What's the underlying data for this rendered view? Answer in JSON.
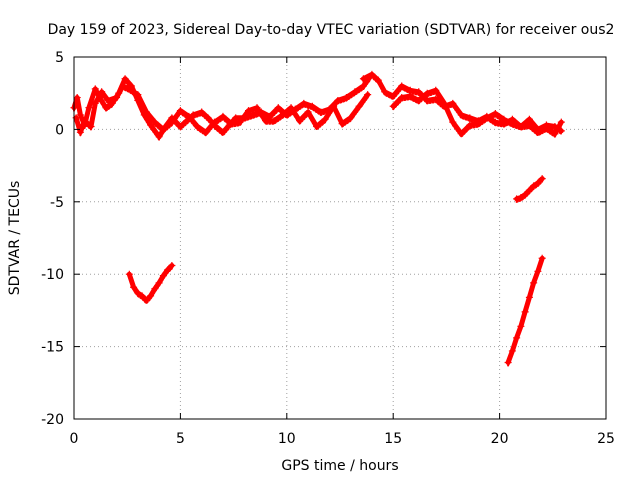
{
  "chart_data": {
    "type": "scatter",
    "title": "Day 159 of 2023, Sidereal Day-to-day VTEC variation (SDTVAR) for receiver ous2",
    "xlabel": "GPS time / hours",
    "ylabel": "SDTVAR / TECUs",
    "xlim": [
      0,
      25
    ],
    "ylim": [
      -20,
      5
    ],
    "xticks": [
      0,
      5,
      10,
      15,
      20,
      25
    ],
    "yticks": [
      5,
      0,
      -5,
      -10,
      -15,
      -20
    ],
    "grid": true,
    "legend": "none",
    "marker": "+",
    "colors": {
      "series": "#ff0000",
      "axis": "#000000",
      "grid": "#a0a0a0"
    },
    "series": [
      {
        "name": "main track A",
        "x": [
          0,
          0.15,
          0.3,
          0.5,
          0.7,
          1.0,
          1.2,
          1.5,
          1.8,
          2.1,
          2.4,
          2.7,
          3.0,
          3.3,
          3.6,
          4.0,
          4.3,
          4.6,
          5.0,
          5.3,
          5.6,
          6.0,
          6.3,
          6.6,
          7.0,
          7.3,
          7.6,
          8.0,
          8.4,
          8.8,
          9.2,
          9.6,
          10.0,
          10.4,
          10.8,
          11.2,
          11.6,
          12.0,
          12.4,
          12.8,
          13.2,
          13.6,
          13.9
        ],
        "y": [
          1.5,
          2.2,
          1.0,
          0.3,
          1.5,
          2.8,
          2.2,
          1.5,
          1.8,
          2.5,
          3.5,
          3.0,
          2.0,
          1.0,
          0.3,
          -0.5,
          0.2,
          0.8,
          0.2,
          0.6,
          1.0,
          1.2,
          0.8,
          0.3,
          -0.2,
          0.3,
          0.8,
          0.8,
          1.0,
          1.2,
          0.9,
          1.5,
          1.0,
          1.4,
          1.8,
          1.6,
          1.2,
          1.4,
          2.0,
          2.2,
          2.6,
          3.0,
          3.6
        ]
      },
      {
        "name": "main track B",
        "x": [
          0.1,
          0.3,
          0.5,
          0.8,
          1.0,
          1.3,
          1.6,
          2.0,
          2.3,
          2.6,
          3.0,
          3.4,
          3.8,
          4.2,
          4.6,
          5.0,
          5.4,
          5.8,
          6.2,
          6.6,
          7.0,
          7.4,
          7.8,
          8.2,
          8.6,
          9.0,
          9.4,
          9.8,
          10.2,
          10.6,
          11.0,
          11.4,
          11.8,
          12.2,
          12.6,
          13.0,
          13.4,
          13.8
        ],
        "y": [
          0.8,
          -0.2,
          0.6,
          0.2,
          1.8,
          2.6,
          2.0,
          2.2,
          3.0,
          2.8,
          2.4,
          1.2,
          0.5,
          0.0,
          0.5,
          1.3,
          0.9,
          0.2,
          -0.2,
          0.5,
          0.9,
          0.4,
          0.5,
          1.3,
          1.5,
          0.6,
          0.6,
          1.0,
          1.5,
          0.6,
          1.2,
          0.2,
          0.7,
          1.6,
          0.4,
          0.8,
          1.6,
          2.4
        ]
      },
      {
        "name": "main track C",
        "x": [
          13.6,
          14.0,
          14.3,
          14.6,
          15.0,
          15.4,
          15.8,
          16.2,
          16.6,
          17.0,
          17.4,
          17.8,
          18.2,
          18.6,
          19.0,
          19.4,
          19.8,
          20.2,
          20.6,
          21.0,
          21.4,
          21.8,
          22.2,
          22.6,
          22.9
        ],
        "y": [
          3.5,
          3.8,
          3.4,
          2.6,
          2.3,
          3.0,
          2.7,
          2.6,
          2.0,
          2.1,
          1.6,
          1.8,
          1.0,
          0.8,
          0.6,
          0.9,
          0.5,
          0.4,
          0.7,
          0.2,
          0.3,
          -0.2,
          0.1,
          -0.3,
          0.5
        ]
      },
      {
        "name": "main track D",
        "x": [
          15.0,
          15.4,
          15.8,
          16.2,
          16.6,
          17.0,
          17.4,
          17.8,
          18.2,
          18.6,
          19.0,
          19.4,
          19.8,
          20.2,
          20.6,
          21.0,
          21.4,
          21.8,
          22.2,
          22.6,
          22.9
        ],
        "y": [
          1.6,
          2.2,
          2.3,
          2.0,
          2.5,
          2.7,
          1.8,
          0.5,
          -0.3,
          0.3,
          0.4,
          0.8,
          1.1,
          0.7,
          0.4,
          0.2,
          0.7,
          0.0,
          0.3,
          0.2,
          -0.1
        ]
      },
      {
        "name": "segment 3h",
        "x": [
          2.6,
          2.8,
          3.0,
          3.2,
          3.4,
          3.6,
          3.8,
          4.0,
          4.2,
          4.4,
          4.6
        ],
        "y": [
          -10.0,
          -10.9,
          -11.3,
          -11.5,
          -11.8,
          -11.5,
          -11.0,
          -10.6,
          -10.1,
          -9.7,
          -9.4
        ]
      },
      {
        "name": "segment 21h short",
        "x": [
          20.8,
          21.0,
          21.2,
          21.4,
          21.6,
          21.8,
          22.0
        ],
        "y": [
          -4.8,
          -4.7,
          -4.5,
          -4.2,
          -3.9,
          -3.7,
          -3.4
        ]
      },
      {
        "name": "segment 21h long",
        "x": [
          20.4,
          20.6,
          20.8,
          21.0,
          21.2,
          21.4,
          21.6,
          21.8,
          22.0
        ],
        "y": [
          -16.1,
          -15.3,
          -14.4,
          -13.6,
          -12.6,
          -11.6,
          -10.6,
          -9.8,
          -8.9
        ]
      }
    ]
  }
}
